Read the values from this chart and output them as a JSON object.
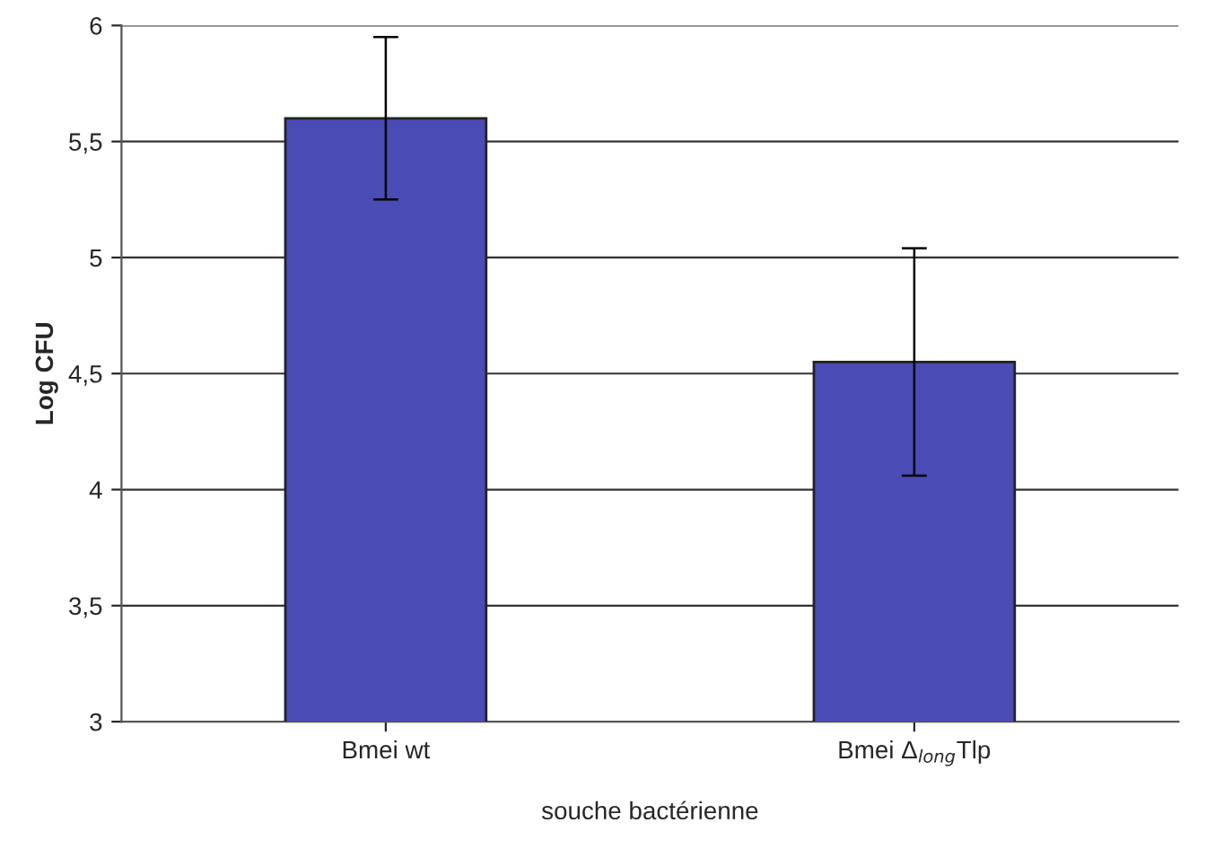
{
  "chart_data": {
    "type": "bar",
    "xlabel": "souche bactérienne",
    "ylabel": "Log CFU",
    "categories": [
      "Bmei wt",
      "Bmei Δ$_{long}$Tlp"
    ],
    "values": [
      5.6,
      4.55
    ],
    "errors": [
      [
        5.25,
        5.95
      ],
      [
        4.06,
        5.04
      ]
    ],
    "color": "#4b4bb5",
    "ylim": [
      3,
      6
    ],
    "yticks": [
      3,
      {
        "value": 3.5,
        "label": "3,5"
      },
      4,
      {
        "value": 4.5,
        "label": "4,5"
      },
      5,
      {
        "value": 5.5,
        "label": "5,5"
      },
      6
    ],
    "grid": "y"
  }
}
